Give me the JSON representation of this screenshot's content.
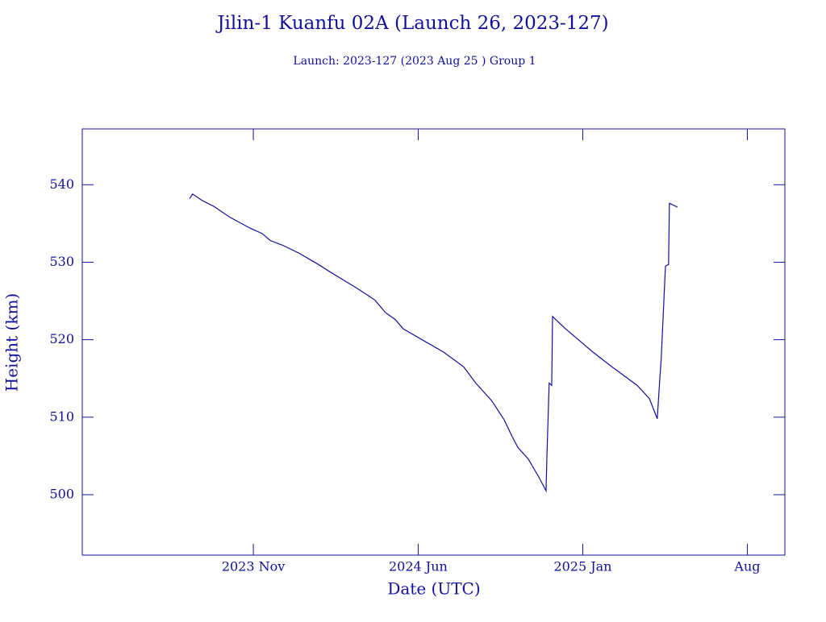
{
  "chart_data": {
    "type": "line",
    "title": "Jilin-1 Kuanfu 02A (Launch 26, 2023-127)",
    "subtitle": "Launch: 2023-127  (2023 Aug 25 )  Group 1",
    "x_label": "Date (UTC)",
    "y_label": "Height (km)",
    "color": "#10109a",
    "xlim": [
      2023.227,
      2025.716
    ],
    "ylim": [
      492.2,
      547.2
    ],
    "xticks": [
      {
        "value": 2023.833,
        "label": "2023 Nov"
      },
      {
        "value": 2024.417,
        "label": "2024 Jun"
      },
      {
        "value": 2025.0,
        "label": "2025 Jan"
      },
      {
        "value": 2025.583,
        "label": "Aug"
      }
    ],
    "yticks": [
      500,
      510,
      520,
      530,
      540
    ],
    "x": [
      2023.607,
      2023.618,
      2023.65,
      2023.693,
      2023.75,
      2023.821,
      2023.864,
      2023.893,
      2023.936,
      2023.993,
      2024.064,
      2024.107,
      2024.193,
      2024.236,
      2024.264,
      2024.301,
      2024.336,
      2024.364,
      2024.421,
      2024.507,
      2024.578,
      2024.621,
      2024.678,
      2024.721,
      2024.75,
      2024.77,
      2024.807,
      2024.844,
      2024.87,
      2024.873,
      2024.881,
      2024.89,
      2024.893,
      2024.936,
      2024.978,
      2025.036,
      2025.107,
      2025.193,
      2025.236,
      2025.264,
      2025.273,
      2025.278,
      2025.293,
      2025.304,
      2025.307,
      2025.336
    ],
    "values": [
      538.2,
      538.8,
      538.0,
      537.2,
      535.8,
      534.4,
      533.7,
      532.8,
      532.2,
      531.2,
      529.7,
      528.7,
      526.8,
      525.8,
      525.1,
      523.5,
      522.6,
      521.4,
      520.2,
      518.4,
      516.5,
      514.4,
      512.1,
      509.7,
      507.5,
      506.1,
      504.6,
      502.3,
      500.5,
      504.9,
      514.4,
      514.1,
      523.0,
      521.5,
      520.2,
      518.4,
      516.4,
      514.1,
      512.4,
      509.8,
      515.0,
      517.6,
      529.5,
      529.7,
      537.6,
      537.1
    ]
  }
}
